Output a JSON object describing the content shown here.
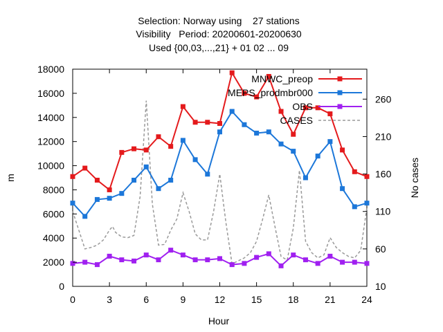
{
  "chart_data": {
    "type": "line",
    "title_lines": [
      "Selection: Norway using    27 stations",
      "Visibility   Period: 20200601-20200630",
      "Used {00,03,...,21} + 01 02 ... 09"
    ],
    "xlabel": "Hour",
    "ylabel": "m",
    "y2label": "No cases",
    "xlim": [
      0,
      24
    ],
    "ylim": [
      0,
      18000
    ],
    "y2lim": [
      10,
      300
    ],
    "xticks": [
      0,
      3,
      6,
      9,
      12,
      15,
      18,
      21,
      24
    ],
    "yticks": [
      0,
      2000,
      4000,
      6000,
      8000,
      10000,
      12000,
      14000,
      16000,
      18000
    ],
    "y2ticks": [
      10,
      60,
      110,
      160,
      210,
      260
    ],
    "grid": false,
    "legend_position": "top-right",
    "x": [
      0,
      1,
      2,
      3,
      4,
      5,
      6,
      7,
      8,
      9,
      10,
      11,
      12,
      13,
      14,
      15,
      16,
      17,
      18,
      19,
      20,
      21,
      22,
      23,
      24
    ],
    "series": [
      {
        "name": "MNWC_preop",
        "color": "#e41a1c",
        "marker": "square",
        "axis": "y",
        "values": [
          9100,
          9800,
          8800,
          8000,
          11100,
          11400,
          11300,
          12400,
          11600,
          14900,
          13600,
          13600,
          13500,
          17700,
          16000,
          15700,
          17400,
          14500,
          12600,
          14800,
          14800,
          14300,
          11300,
          9500,
          9100
        ]
      },
      {
        "name": "MEPS_prodmbr000",
        "color": "#1c77d9",
        "marker": "square",
        "axis": "y",
        "values": [
          6900,
          5800,
          7200,
          7300,
          7700,
          8800,
          9900,
          8100,
          8800,
          12100,
          10500,
          9300,
          12800,
          14500,
          13400,
          12700,
          12800,
          11800,
          11200,
          9000,
          10800,
          12000,
          8100,
          6600,
          6900
        ]
      },
      {
        "name": "OBS",
        "color": "#a020f0",
        "marker": "square",
        "axis": "y",
        "values": [
          1900,
          2000,
          1800,
          2500,
          2200,
          2100,
          2600,
          2200,
          3000,
          2600,
          2200,
          2200,
          2300,
          1800,
          1900,
          2400,
          2700,
          1700,
          2600,
          2200,
          1900,
          2500,
          2000,
          2000,
          1900
        ]
      },
      {
        "name": "CASES",
        "color": "#999999",
        "marker": "none",
        "dashed": true,
        "axis": "y2",
        "x": [
          0,
          0.5,
          1,
          1.5,
          2,
          2.5,
          3,
          3.25,
          3.5,
          4,
          4.5,
          5,
          5.5,
          6,
          6.5,
          7,
          7.5,
          8,
          8.5,
          9,
          9.5,
          10,
          10.5,
          11,
          11.5,
          12,
          12.5,
          13,
          13.5,
          14,
          14.5,
          15,
          15.5,
          16,
          16.5,
          17,
          17.5,
          18,
          18.5,
          19,
          19.5,
          20,
          20.5,
          21,
          21.5,
          22,
          22.5,
          23,
          23.5,
          24
        ],
        "values": [
          110,
          85,
          60,
          62,
          65,
          72,
          85,
          90,
          82,
          76,
          75,
          78,
          130,
          258,
          120,
          65,
          66,
          85,
          100,
          135,
          110,
          80,
          72,
          72,
          110,
          160,
          95,
          40,
          44,
          48,
          55,
          70,
          100,
          132,
          90,
          50,
          45,
          88,
          165,
          70,
          55,
          48,
          52,
          75,
          62,
          55,
          50,
          48,
          58,
          115
        ]
      }
    ]
  }
}
